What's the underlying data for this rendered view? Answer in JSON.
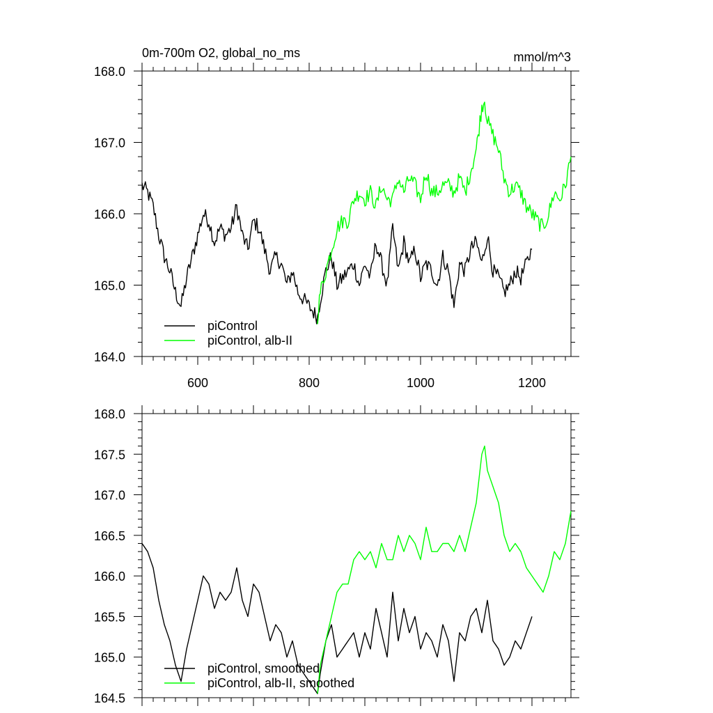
{
  "chart_data": [
    {
      "type": "line",
      "title": "0m-700m O2, global_no_ms",
      "units": "mmol/m^3",
      "xlim": [
        500,
        1270
      ],
      "ylim": [
        164.0,
        168.0
      ],
      "xticks": [
        600,
        800,
        1000,
        1200
      ],
      "xtick_labels": [
        "600",
        "800",
        "1000",
        "1200"
      ],
      "yticks": [
        164.0,
        165.0,
        166.0,
        167.0,
        168.0
      ],
      "ytick_labels": [
        "164.0",
        "165.0",
        "166.0",
        "167.0",
        "168.0"
      ],
      "legend_position": "bottom-left",
      "noisy": true,
      "series": [
        {
          "name": "piControl",
          "color": "#000000",
          "x": [
            500,
            510,
            520,
            530,
            540,
            550,
            560,
            570,
            580,
            590,
            600,
            610,
            620,
            630,
            640,
            650,
            660,
            670,
            680,
            690,
            700,
            710,
            720,
            730,
            740,
            750,
            760,
            770,
            780,
            790,
            800,
            810,
            815,
            820,
            830,
            840,
            850,
            860,
            870,
            880,
            890,
            900,
            910,
            920,
            930,
            940,
            950,
            960,
            970,
            980,
            990,
            1000,
            1010,
            1020,
            1030,
            1040,
            1050,
            1060,
            1070,
            1080,
            1090,
            1100,
            1110,
            1120,
            1130,
            1140,
            1150,
            1160,
            1170,
            1180,
            1190,
            1200
          ],
          "y": [
            166.4,
            166.3,
            166.1,
            165.7,
            165.4,
            165.2,
            164.9,
            164.7,
            165.1,
            165.4,
            165.7,
            166.0,
            165.9,
            165.6,
            165.8,
            165.7,
            165.8,
            166.1,
            165.7,
            165.5,
            165.9,
            165.8,
            165.5,
            165.2,
            165.4,
            165.3,
            165.0,
            165.2,
            164.9,
            164.8,
            164.7,
            164.6,
            164.55,
            164.8,
            165.2,
            165.4,
            165.0,
            165.1,
            165.2,
            165.3,
            165.0,
            165.3,
            165.1,
            165.6,
            165.3,
            165.0,
            165.8,
            165.2,
            165.6,
            165.3,
            165.5,
            165.1,
            165.3,
            165.2,
            165.0,
            165.4,
            165.2,
            164.7,
            165.3,
            165.2,
            165.5,
            165.6,
            165.3,
            165.7,
            165.2,
            165.1,
            164.9,
            165.0,
            165.2,
            165.1,
            165.3,
            165.5
          ]
        },
        {
          "name": "piControl, alb-II",
          "color": "#00ff00",
          "x": [
            815,
            820,
            830,
            840,
            850,
            860,
            870,
            880,
            890,
            900,
            910,
            920,
            930,
            940,
            950,
            960,
            970,
            980,
            990,
            1000,
            1010,
            1020,
            1030,
            1040,
            1050,
            1060,
            1070,
            1080,
            1090,
            1100,
            1105,
            1110,
            1115,
            1120,
            1130,
            1140,
            1150,
            1160,
            1170,
            1180,
            1190,
            1200,
            1210,
            1220,
            1230,
            1240,
            1250,
            1260,
            1270
          ],
          "y": [
            164.55,
            164.9,
            165.2,
            165.5,
            165.8,
            165.9,
            165.9,
            166.2,
            166.3,
            166.2,
            166.3,
            166.1,
            166.4,
            166.2,
            166.2,
            166.5,
            166.3,
            166.5,
            166.4,
            166.2,
            166.6,
            166.3,
            166.3,
            166.4,
            166.4,
            166.3,
            166.5,
            166.3,
            166.6,
            166.9,
            167.2,
            167.5,
            167.6,
            167.3,
            167.1,
            166.9,
            166.5,
            166.3,
            166.4,
            166.3,
            166.1,
            166.0,
            165.9,
            165.8,
            166.0,
            166.3,
            166.2,
            166.4,
            166.8
          ]
        }
      ]
    },
    {
      "type": "line",
      "xlim": [
        500,
        1270
      ],
      "ylim": [
        164.5,
        168.0
      ],
      "xticks": [
        600,
        800,
        1000,
        1200
      ],
      "yticks": [
        164.5,
        165.0,
        165.5,
        166.0,
        166.5,
        167.0,
        167.5,
        168.0
      ],
      "ytick_labels": [
        "164.5",
        "165.0",
        "165.5",
        "166.0",
        "166.5",
        "167.0",
        "167.5",
        "168.0"
      ],
      "legend_position": "bottom-left",
      "noisy": false,
      "series": [
        {
          "name": "piControl, smoothed",
          "color": "#000000",
          "x": [
            500,
            510,
            520,
            530,
            540,
            550,
            560,
            570,
            580,
            590,
            600,
            610,
            620,
            630,
            640,
            650,
            660,
            670,
            680,
            690,
            700,
            710,
            720,
            730,
            740,
            750,
            760,
            770,
            780,
            790,
            800,
            810,
            815,
            820,
            830,
            840,
            850,
            860,
            870,
            880,
            890,
            900,
            910,
            920,
            930,
            940,
            950,
            960,
            970,
            980,
            990,
            1000,
            1010,
            1020,
            1030,
            1040,
            1050,
            1060,
            1070,
            1080,
            1090,
            1100,
            1110,
            1120,
            1130,
            1140,
            1150,
            1160,
            1170,
            1180,
            1190,
            1200
          ],
          "y": [
            166.4,
            166.3,
            166.1,
            165.7,
            165.4,
            165.2,
            164.9,
            164.7,
            165.1,
            165.4,
            165.7,
            166.0,
            165.9,
            165.6,
            165.8,
            165.7,
            165.8,
            166.1,
            165.7,
            165.5,
            165.9,
            165.8,
            165.5,
            165.2,
            165.4,
            165.3,
            165.0,
            165.2,
            164.9,
            164.8,
            164.7,
            164.6,
            164.55,
            164.8,
            165.2,
            165.4,
            165.0,
            165.1,
            165.2,
            165.3,
            165.0,
            165.3,
            165.1,
            165.6,
            165.3,
            165.0,
            165.8,
            165.2,
            165.6,
            165.3,
            165.5,
            165.1,
            165.3,
            165.2,
            165.0,
            165.4,
            165.2,
            164.7,
            165.3,
            165.2,
            165.5,
            165.6,
            165.3,
            165.7,
            165.2,
            165.1,
            164.9,
            165.0,
            165.2,
            165.1,
            165.3,
            165.5
          ]
        },
        {
          "name": "piControl, alb-II, smoothed",
          "color": "#00ff00",
          "x": [
            815,
            820,
            830,
            840,
            850,
            860,
            870,
            880,
            890,
            900,
            910,
            920,
            930,
            940,
            950,
            960,
            970,
            980,
            990,
            1000,
            1010,
            1020,
            1030,
            1040,
            1050,
            1060,
            1070,
            1080,
            1090,
            1100,
            1105,
            1110,
            1115,
            1120,
            1130,
            1140,
            1150,
            1160,
            1170,
            1180,
            1190,
            1200,
            1210,
            1220,
            1230,
            1240,
            1250,
            1260,
            1270
          ],
          "y": [
            164.55,
            164.9,
            165.2,
            165.5,
            165.8,
            165.9,
            165.9,
            166.2,
            166.3,
            166.2,
            166.3,
            166.1,
            166.4,
            166.2,
            166.2,
            166.5,
            166.3,
            166.5,
            166.4,
            166.2,
            166.6,
            166.3,
            166.3,
            166.4,
            166.4,
            166.3,
            166.5,
            166.3,
            166.6,
            166.9,
            167.2,
            167.5,
            167.6,
            167.3,
            167.1,
            166.9,
            166.5,
            166.3,
            166.4,
            166.3,
            166.1,
            166.0,
            165.9,
            165.8,
            166.0,
            166.3,
            166.2,
            166.4,
            166.8
          ]
        }
      ]
    }
  ]
}
